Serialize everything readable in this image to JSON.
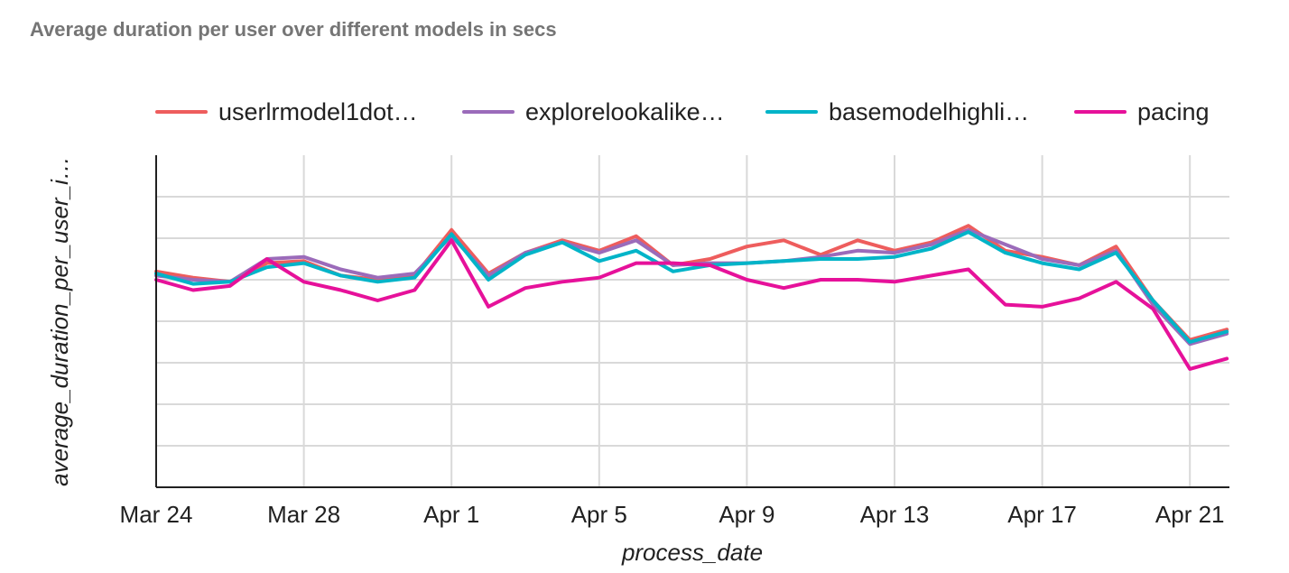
{
  "chart_data": {
    "type": "line",
    "title": "Average duration per user over different models in secs",
    "xlabel": "process_date",
    "ylabel": "average_duration_per_user_i…",
    "x_ticks": [
      "Mar 24",
      "Mar 28",
      "Apr 1",
      "Apr 5",
      "Apr 9",
      "Apr 13",
      "Apr 17",
      "Apr 21"
    ],
    "x": [
      "Mar 24",
      "Mar 25",
      "Mar 26",
      "Mar 27",
      "Mar 28",
      "Mar 29",
      "Mar 30",
      "Mar 31",
      "Apr 1",
      "Apr 2",
      "Apr 3",
      "Apr 4",
      "Apr 5",
      "Apr 6",
      "Apr 7",
      "Apr 8",
      "Apr 9",
      "Apr 10",
      "Apr 11",
      "Apr 12",
      "Apr 13",
      "Apr 14",
      "Apr 15",
      "Apr 16",
      "Apr 17",
      "Apr 18",
      "Apr 19",
      "Apr 20",
      "Apr 21",
      "Apr 22"
    ],
    "ylim": [
      0,
      8
    ],
    "grid": true,
    "legend_position": "top",
    "series": [
      {
        "name": "userlrmodel1dot…",
        "color": "#ee5d5d",
        "values": [
          5.2,
          5.05,
          4.95,
          5.4,
          5.45,
          5.1,
          5.0,
          5.1,
          6.2,
          5.15,
          5.65,
          5.95,
          5.7,
          6.05,
          5.35,
          5.5,
          5.8,
          5.95,
          5.6,
          5.95,
          5.7,
          5.9,
          6.3,
          5.7,
          5.55,
          5.35,
          5.8,
          4.5,
          3.55,
          3.8
        ]
      },
      {
        "name": "explorelookalike…",
        "color": "#9b6bba",
        "values": [
          5.1,
          5.0,
          4.95,
          5.5,
          5.55,
          5.25,
          5.05,
          5.15,
          6.05,
          5.1,
          5.65,
          5.9,
          5.65,
          5.95,
          5.35,
          5.4,
          5.4,
          5.45,
          5.55,
          5.7,
          5.65,
          5.85,
          6.2,
          5.85,
          5.5,
          5.35,
          5.7,
          4.4,
          3.45,
          3.7
        ]
      },
      {
        "name": "basemodelhighli…",
        "color": "#00b4c8",
        "values": [
          5.15,
          4.9,
          4.95,
          5.3,
          5.4,
          5.1,
          4.95,
          5.05,
          6.1,
          5.0,
          5.6,
          5.9,
          5.45,
          5.7,
          5.2,
          5.35,
          5.4,
          5.45,
          5.5,
          5.5,
          5.55,
          5.75,
          6.15,
          5.65,
          5.4,
          5.25,
          5.65,
          4.5,
          3.5,
          3.75
        ]
      },
      {
        "name": "pacing",
        "color": "#e6119a",
        "values": [
          5.0,
          4.75,
          4.85,
          5.5,
          4.95,
          4.75,
          4.5,
          4.75,
          5.95,
          4.35,
          4.8,
          4.95,
          5.05,
          5.4,
          5.4,
          5.35,
          5.0,
          4.8,
          5.0,
          5.0,
          4.95,
          5.1,
          5.25,
          4.4,
          4.35,
          4.55,
          4.95,
          4.3,
          2.85,
          3.1
        ]
      }
    ]
  }
}
